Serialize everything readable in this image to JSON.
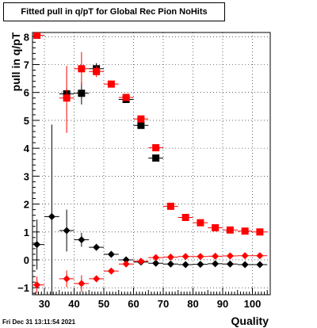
{
  "chart_data": {
    "type": "scatter",
    "title": "Fitted pull in q/pT for Global Rec Pion NoHits",
    "xlabel": "Quality",
    "ylabel": "pull in q/pT",
    "xlim": [
      26,
      106
    ],
    "ylim": [
      -1.25,
      8.15
    ],
    "x_ticks": [
      30,
      40,
      50,
      60,
      70,
      80,
      90,
      100
    ],
    "y_ticks": [
      -1,
      0,
      1,
      2,
      3,
      4,
      5,
      6,
      7,
      8
    ],
    "grid": true,
    "footer": "Fri Dec 31 13:11:54 2021",
    "series": [
      {
        "marker": "diamond",
        "color": "#000000",
        "points": [
          {
            "x": 27.5,
            "y": 0.55,
            "elo": 0.9,
            "ehi": 0.9
          },
          {
            "x": 32.5,
            "y": 1.55,
            "elo": 3.3,
            "ehi": 3.3
          },
          {
            "x": 37.5,
            "y": 1.05,
            "elo": 0.75,
            "ehi": 0.75
          },
          {
            "x": 42.5,
            "y": 0.72,
            "elo": 0.25,
            "ehi": 0.25
          },
          {
            "x": 47.5,
            "y": 0.45,
            "elo": 0.12,
            "ehi": 0.12
          },
          {
            "x": 52.5,
            "y": 0.2,
            "elo": 0.07,
            "ehi": 0.07
          },
          {
            "x": 57.5,
            "y": 0.0,
            "elo": 0.05,
            "ehi": 0.05
          },
          {
            "x": 62.5,
            "y": -0.08,
            "elo": 0.04,
            "ehi": 0.04
          },
          {
            "x": 67.5,
            "y": -0.12,
            "elo": 0.03,
            "ehi": 0.03
          },
          {
            "x": 72.5,
            "y": -0.15,
            "elo": 0.03,
            "ehi": 0.03
          },
          {
            "x": 77.5,
            "y": -0.17,
            "elo": 0.03,
            "ehi": 0.03
          },
          {
            "x": 82.5,
            "y": -0.16,
            "elo": 0.03,
            "ehi": 0.03
          },
          {
            "x": 87.5,
            "y": -0.14,
            "elo": 0.03,
            "ehi": 0.03
          },
          {
            "x": 92.5,
            "y": -0.15,
            "elo": 0.03,
            "ehi": 0.03
          },
          {
            "x": 97.5,
            "y": -0.17,
            "elo": 0.03,
            "ehi": 0.03
          },
          {
            "x": 102.5,
            "y": -0.17,
            "elo": 0.03,
            "ehi": 0.03
          }
        ]
      },
      {
        "marker": "diamond",
        "color": "#ff0000",
        "points": [
          {
            "x": 27.5,
            "y": -0.9,
            "elo": 0.3,
            "ehi": 0.3
          },
          {
            "x": 37.5,
            "y": -0.68,
            "elo": 0.3,
            "ehi": 0.3
          },
          {
            "x": 42.5,
            "y": -0.85,
            "elo": 0.3,
            "ehi": 0.3
          },
          {
            "x": 47.5,
            "y": -0.68,
            "elo": 0.12,
            "ehi": 0.12
          },
          {
            "x": 52.5,
            "y": -0.4,
            "elo": 0.08,
            "ehi": 0.08
          },
          {
            "x": 57.5,
            "y": -0.15,
            "elo": 0.05,
            "ehi": 0.05
          },
          {
            "x": 62.5,
            "y": -0.05,
            "elo": 0.04,
            "ehi": 0.04
          },
          {
            "x": 67.5,
            "y": 0.08,
            "elo": 0.03,
            "ehi": 0.03
          },
          {
            "x": 72.5,
            "y": 0.1,
            "elo": 0.03,
            "ehi": 0.03
          },
          {
            "x": 77.5,
            "y": 0.12,
            "elo": 0.03,
            "ehi": 0.03
          },
          {
            "x": 82.5,
            "y": 0.12,
            "elo": 0.03,
            "ehi": 0.03
          },
          {
            "x": 87.5,
            "y": 0.13,
            "elo": 0.03,
            "ehi": 0.03
          },
          {
            "x": 92.5,
            "y": 0.14,
            "elo": 0.03,
            "ehi": 0.03
          },
          {
            "x": 97.5,
            "y": 0.15,
            "elo": 0.03,
            "ehi": 0.03
          },
          {
            "x": 102.5,
            "y": 0.15,
            "elo": 0.03,
            "ehi": 0.03
          }
        ]
      },
      {
        "marker": "square",
        "color": "#000000",
        "points": [
          {
            "x": 37.5,
            "y": 5.95,
            "elo": 0.2,
            "ehi": 0.2
          },
          {
            "x": 42.5,
            "y": 5.97,
            "elo": 0.4,
            "ehi": 0.4
          },
          {
            "x": 47.5,
            "y": 6.85,
            "elo": 0.2,
            "ehi": 0.2
          },
          {
            "x": 57.5,
            "y": 5.75,
            "elo": 0.05,
            "ehi": 0.05
          },
          {
            "x": 62.5,
            "y": 4.82,
            "elo": 0.05,
            "ehi": 0.05
          },
          {
            "x": 67.5,
            "y": 3.65,
            "elo": 0.05,
            "ehi": 0.05
          }
        ]
      },
      {
        "marker": "square",
        "color": "#ff0000",
        "points": [
          {
            "x": 27.5,
            "y": 8.05,
            "elo": 0.1,
            "ehi": 0.1
          },
          {
            "x": 37.5,
            "y": 5.8,
            "elo": 1.25,
            "ehi": 1.15
          },
          {
            "x": 42.5,
            "y": 6.85,
            "elo": 0.6,
            "ehi": 0.6
          },
          {
            "x": 47.5,
            "y": 6.75,
            "elo": 0.2,
            "ehi": 0.2
          },
          {
            "x": 52.5,
            "y": 6.3,
            "elo": 0.1,
            "ehi": 0.1
          },
          {
            "x": 57.5,
            "y": 5.82,
            "elo": 0.08,
            "ehi": 0.08
          },
          {
            "x": 62.5,
            "y": 5.05,
            "elo": 0.06,
            "ehi": 0.06
          },
          {
            "x": 67.5,
            "y": 4.02,
            "elo": 0.05,
            "ehi": 0.05
          },
          {
            "x": 72.5,
            "y": 1.92,
            "elo": 0.05,
            "ehi": 0.05
          },
          {
            "x": 77.5,
            "y": 1.52,
            "elo": 0.04,
            "ehi": 0.04
          },
          {
            "x": 82.5,
            "y": 1.33,
            "elo": 0.04,
            "ehi": 0.04
          },
          {
            "x": 87.5,
            "y": 1.15,
            "elo": 0.04,
            "ehi": 0.04
          },
          {
            "x": 92.5,
            "y": 1.07,
            "elo": 0.04,
            "ehi": 0.04
          },
          {
            "x": 97.5,
            "y": 1.03,
            "elo": 0.04,
            "ehi": 0.04
          },
          {
            "x": 102.5,
            "y": 1.0,
            "elo": 0.04,
            "ehi": 0.04
          }
        ]
      }
    ]
  }
}
